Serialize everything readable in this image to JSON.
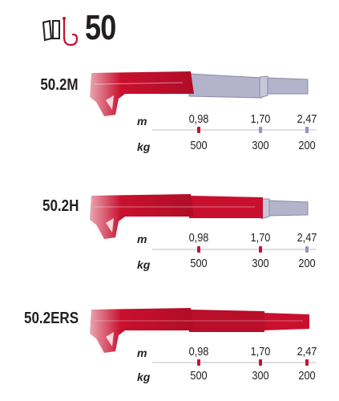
{
  "header": {
    "model_number": "50",
    "icons": [
      "double-jib-extension-icon",
      "hook-icon"
    ]
  },
  "colors": {
    "boom_red": "#c8102e",
    "extension_grey": "#b3b3cc",
    "dot_red": "#c8102e",
    "dot_blue": "#8f96c4",
    "line": "#c9c9d6"
  },
  "variants": [
    {
      "name": "50.2M",
      "unit_m": "m",
      "unit_kg": "kg",
      "points": [
        {
          "m": "0,98",
          "kg": "500",
          "dot": "red"
        },
        {
          "m": "1,70",
          "kg": "300",
          "dot": "blue"
        },
        {
          "m": "2,47",
          "kg": "200",
          "dot": "blue"
        }
      ]
    },
    {
      "name": "50.2H",
      "unit_m": "m",
      "unit_kg": "kg",
      "points": [
        {
          "m": "0,98",
          "kg": "500",
          "dot": "red"
        },
        {
          "m": "1,70",
          "kg": "300",
          "dot": "red"
        },
        {
          "m": "2,47",
          "kg": "200",
          "dot": "blue"
        }
      ]
    },
    {
      "name": "50.2ERS",
      "unit_m": "m",
      "unit_kg": "kg",
      "points": [
        {
          "m": "0,98",
          "kg": "500",
          "dot": "red"
        },
        {
          "m": "1,70",
          "kg": "300",
          "dot": "red"
        },
        {
          "m": "2,47",
          "kg": "200",
          "dot": "red"
        }
      ]
    }
  ]
}
